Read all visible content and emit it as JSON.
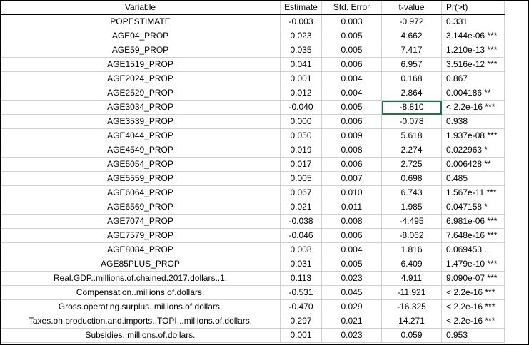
{
  "columns": [
    "Variable",
    "Estimate",
    "Std. Error",
    "t-value",
    "Pr(>t)"
  ],
  "rows": [
    [
      "POPESTIMATE",
      "-0.003",
      "0.003",
      "-0.972",
      "0.331"
    ],
    [
      "AGE04_PROP",
      "0.023",
      "0.005",
      "4.662",
      "3.144e-06 ***"
    ],
    [
      "AGE59_PROP",
      "0.035",
      "0.005",
      "7.417",
      "1.210e-13 ***"
    ],
    [
      "AGE1519_PROP",
      "0.041",
      "0.006",
      "6.957",
      "3.516e-12 ***"
    ],
    [
      "AGE2024_PROP",
      "0.001",
      "0.004",
      "0.168",
      "0.867"
    ],
    [
      "AGE2529_PROP",
      "0.012",
      "0.004",
      "2.864",
      "0.004186 **"
    ],
    [
      "AGE3034_PROP",
      "-0.040",
      "0.005",
      "-8.810",
      "< 2.2e-16 ***"
    ],
    [
      "AGE3539_PROP",
      "0.000",
      "0.006",
      "-0.078",
      "0.938"
    ],
    [
      "AGE4044_PROP",
      "0.050",
      "0.009",
      "5.618",
      "1.937e-08 ***"
    ],
    [
      "AGE4549_PROP",
      "0.019",
      "0.008",
      "2.274",
      "0.022963 *"
    ],
    [
      "AGE5054_PROP",
      "0.017",
      "0.006",
      "2.725",
      "0.006428 **"
    ],
    [
      "AGE5559_PROP",
      "0.005",
      "0.007",
      "0.698",
      "0.485"
    ],
    [
      "AGE6064_PROP",
      "0.067",
      "0.010",
      "6.743",
      "1.567e-11 ***"
    ],
    [
      "AGE6569_PROP",
      "0.021",
      "0.011",
      "1.985",
      "0.047158 *"
    ],
    [
      "AGE7074_PROP",
      "-0.038",
      "0.008",
      "-4.495",
      "6.981e-06 ***"
    ],
    [
      "AGE7579_PROP",
      "-0.046",
      "0.006",
      "-8.062",
      "7.648e-16 ***"
    ],
    [
      "AGE8084_PROP",
      "0.008",
      "0.004",
      "1.816",
      "0.069453 ."
    ],
    [
      "AGE85PLUS_PROP",
      "0.031",
      "0.005",
      "6.409",
      "1.479e-10 ***"
    ],
    [
      "Real.GDP..millions.of.chained.2017.dollars..1.",
      "0.113",
      "0.023",
      "4.911",
      "9.090e-07 ***"
    ],
    [
      "Compensation..millions.of.dollars.",
      "-0.531",
      "0.045",
      "-11.921",
      "< 2.2e-16 ***"
    ],
    [
      "Gross.operating.surplus..millions.of.dollars.",
      "-0.470",
      "0.029",
      "-16.325",
      "< 2.2e-16 ***"
    ],
    [
      "Taxes.on.production.and.imports..TOPI...millions.of.dollars.",
      "0.297",
      "0.021",
      "14.271",
      "< 2.2e-16 ***"
    ],
    [
      "Subsidies..millions.of.dollars.",
      "0.001",
      "0.023",
      "0.059",
      "0.953"
    ]
  ],
  "selected_cell": {
    "row": 6,
    "col": 3
  },
  "colors": {
    "selection": "#217346",
    "grid": "#d0d0d0"
  }
}
